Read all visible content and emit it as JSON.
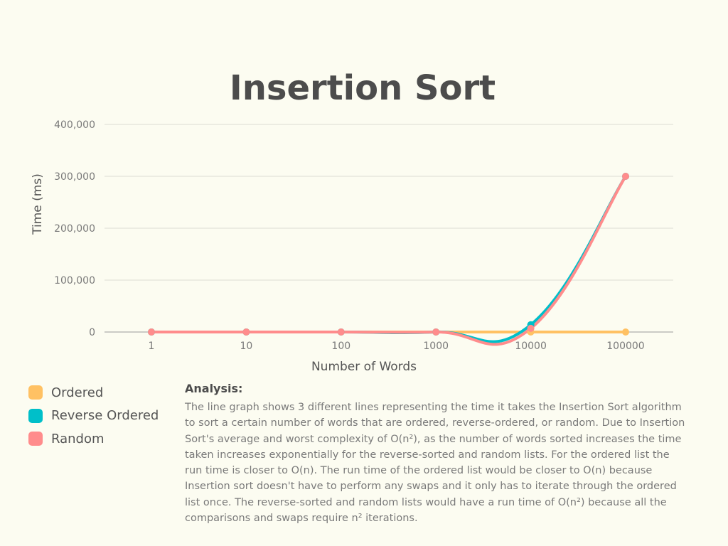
{
  "chart_data": {
    "type": "line",
    "title": "Insertion Sort",
    "xlabel": "Number of Words",
    "ylabel": "Time (ms)",
    "categories": [
      "1",
      "10",
      "100",
      "1000",
      "10000",
      "100000"
    ],
    "ylim": [
      0,
      400000
    ],
    "yticks": [
      0,
      100000,
      200000,
      300000,
      400000
    ],
    "ytick_labels": [
      "0",
      "100,000",
      "200,000",
      "300,000",
      "400,000"
    ],
    "grid": true,
    "legend_position": "bottom-left",
    "series": [
      {
        "name": "Ordered",
        "color": "#ffc163",
        "values": [
          0,
          0,
          0,
          0,
          0,
          0
        ]
      },
      {
        "name": "Reverse Ordered",
        "color": "#00bfc9",
        "values": [
          0,
          0,
          0,
          0,
          14000,
          300000
        ]
      },
      {
        "name": "Random",
        "color": "#ff8c8c",
        "values": [
          0,
          0,
          0,
          0,
          7000,
          300000
        ]
      }
    ]
  },
  "analysis": {
    "heading": "Analysis:",
    "text": "The line graph shows 3 different lines representing the time it takes the Insertion Sort algorithm to sort a certain number of words that are ordered, reverse-ordered, or random. Due to Insertion Sort's average and worst complexity of O(n²), as the number of words sorted increases the time taken increases exponentially for the reverse-sorted and random lists. For the ordered list the run time is closer to O(n). The run time of the ordered list would be closer to O(n) because Insertion sort doesn't have to perform any swaps and it only has to iterate through the ordered list once. The reverse-sorted and random lists would have a run time of O(n²) because all the comparisons and swaps require n² iterations."
  }
}
